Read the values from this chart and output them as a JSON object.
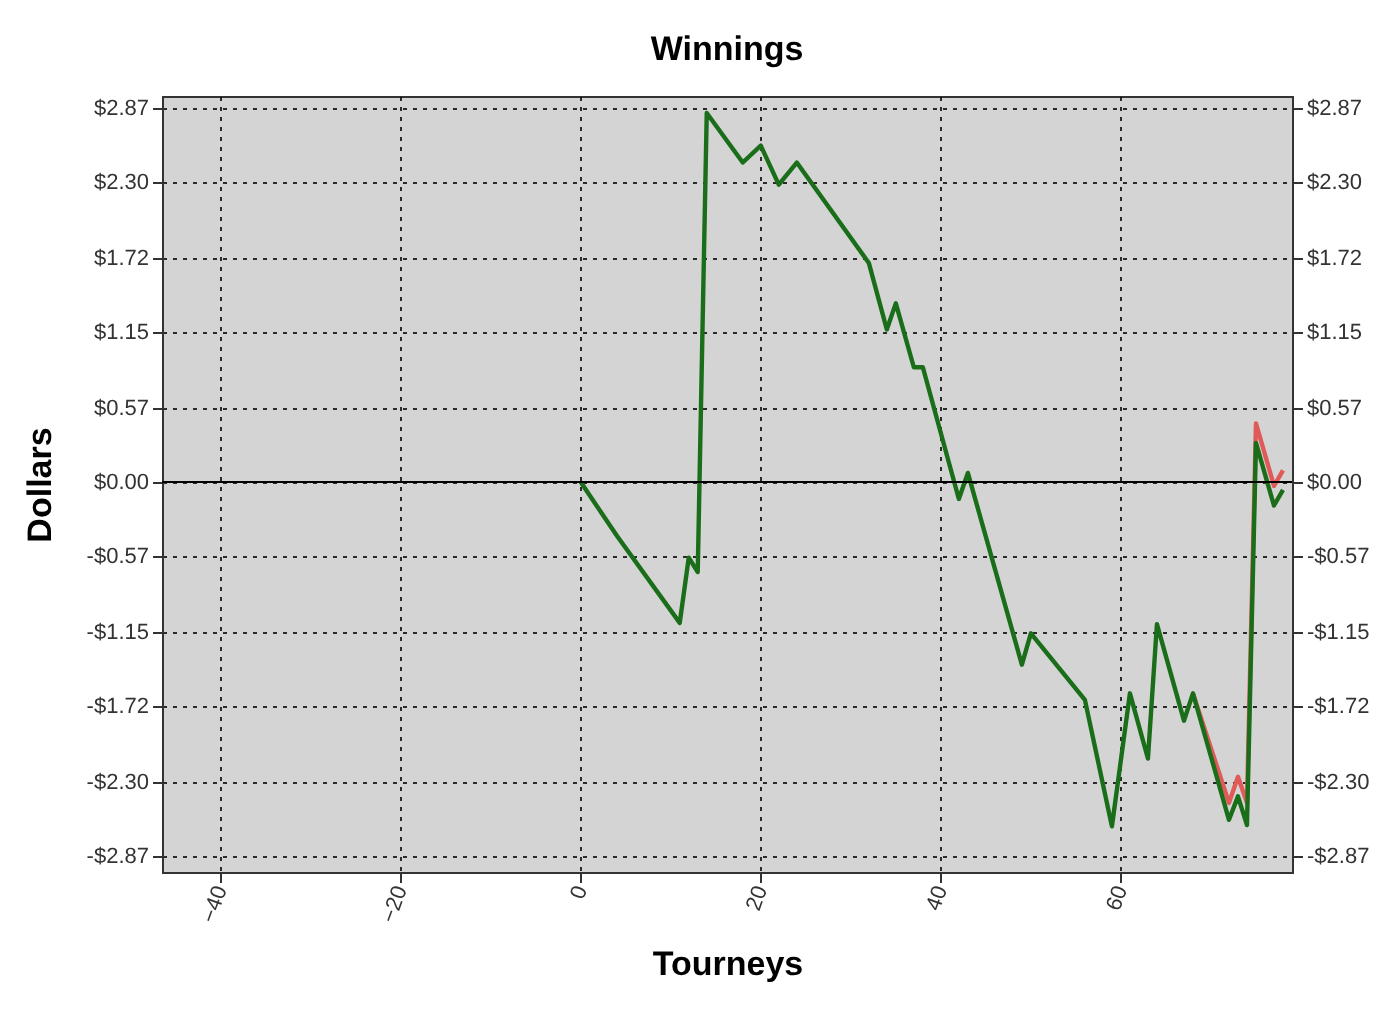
{
  "chart_data": {
    "type": "line",
    "title": "Winnings",
    "xlabel": "Tourneys",
    "ylabel": "Dollars",
    "x": [
      0,
      4,
      11,
      12,
      13,
      14,
      18,
      20,
      22,
      24,
      32,
      34,
      35,
      37,
      38,
      42,
      43,
      49,
      50,
      56,
      59,
      61,
      63,
      64,
      67,
      68,
      72,
      73,
      74,
      75,
      77,
      78
    ],
    "series": [
      {
        "color": "#e05a5a",
        "values": [
          null,
          null,
          null,
          null,
          null,
          null,
          null,
          null,
          null,
          null,
          null,
          null,
          null,
          null,
          null,
          null,
          null,
          null,
          null,
          null,
          null,
          null,
          null,
          null,
          null,
          -1.62,
          -2.46,
          -2.26,
          -2.46,
          0.45,
          -0.03,
          0.09
        ]
      },
      {
        "color": "#1a6e1a",
        "values": [
          0,
          -0.41,
          -1.08,
          -0.58,
          -0.69,
          2.83,
          2.45,
          2.58,
          2.28,
          2.45,
          1.68,
          1.17,
          1.37,
          0.88,
          0.88,
          -0.13,
          0.07,
          -1.4,
          -1.16,
          -1.67,
          -2.64,
          -1.62,
          -2.12,
          -1.09,
          -1.83,
          -1.62,
          -2.59,
          -2.41,
          -2.63,
          0.3,
          -0.18,
          -0.06
        ]
      }
    ],
    "xlim": [
      -46.5,
      79
    ],
    "xticks": [
      -40,
      -20,
      0,
      20,
      40,
      60
    ],
    "ylim": [
      -2.99,
      2.96
    ],
    "yticks": [
      {
        "value": 2.87,
        "label": "$2.87"
      },
      {
        "value": 2.3,
        "label": "$2.30"
      },
      {
        "value": 1.72,
        "label": "$1.72"
      },
      {
        "value": 1.15,
        "label": "$1.15"
      },
      {
        "value": 0.57,
        "label": "$0.57"
      },
      {
        "value": 0,
        "label": "$0.00"
      },
      {
        "value": -0.57,
        "label": "-$0.57"
      },
      {
        "value": -1.15,
        "label": "-$1.15"
      },
      {
        "value": -1.72,
        "label": "-$1.72"
      },
      {
        "value": -2.3,
        "label": "-$2.30"
      },
      {
        "value": -2.87,
        "label": "-$2.87"
      }
    ],
    "y2lim": [
      -2.99,
      2.96
    ],
    "y2ticks": [
      {
        "value": 2.87,
        "label": "$2.87"
      },
      {
        "value": 2.3,
        "label": "$2.30"
      },
      {
        "value": 1.72,
        "label": "$1.72"
      },
      {
        "value": 1.15,
        "label": "$1.15"
      },
      {
        "value": 0.57,
        "label": "$0.57"
      },
      {
        "value": 0,
        "label": "$0.00"
      },
      {
        "value": -0.57,
        "label": "-$0.57"
      },
      {
        "value": -1.15,
        "label": "-$1.15"
      },
      {
        "value": -1.72,
        "label": "-$1.72"
      },
      {
        "value": -2.3,
        "label": "-$2.30"
      },
      {
        "value": -2.87,
        "label": "-$2.87"
      }
    ],
    "ref_lines": [
      {
        "axis": "y",
        "value": 0,
        "color": "#000000"
      }
    ],
    "grid": true,
    "legend": false,
    "line_style": "solid"
  }
}
